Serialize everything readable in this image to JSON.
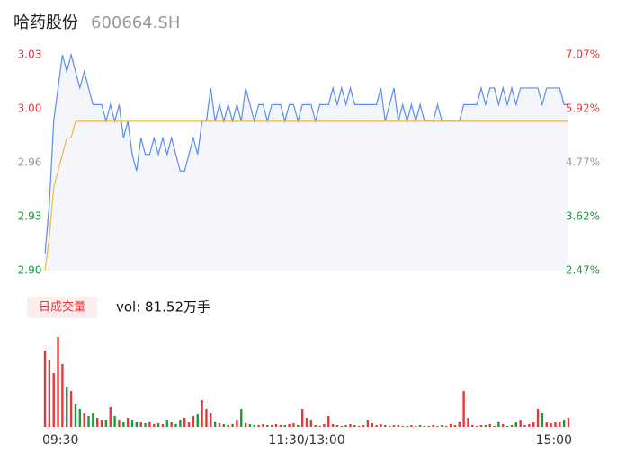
{
  "header": {
    "name": "哈药股份",
    "code": "600664.SH"
  },
  "chart_data": [
    {
      "type": "line",
      "xlim": [
        0,
        120
      ],
      "ylim": [
        2.9,
        3.03
      ],
      "yticks": [
        {
          "value": 3.03,
          "label": "3.03"
        },
        {
          "value": 2.9975,
          "label": "3.00"
        },
        {
          "value": 2.9649,
          "label": "2.96"
        },
        {
          "value": 2.9325,
          "label": "2.93"
        },
        {
          "value": 2.9,
          "label": "2.90"
        }
      ],
      "ytick_colors": [
        "#e4393c",
        "#e4393c",
        "#999999",
        "#1a9a3a",
        "#1a9a3a"
      ],
      "y2lim": [
        2.47,
        7.07
      ],
      "y2ticks": [
        {
          "value": 7.07,
          "label": "7.07%"
        },
        {
          "value": 5.92,
          "label": "5.92%"
        },
        {
          "value": 4.77,
          "label": "4.77%"
        },
        {
          "value": 3.62,
          "label": "3.62%"
        },
        {
          "value": 2.47,
          "label": "2.47%"
        }
      ],
      "y2tick_colors": [
        "#e4393c",
        "#e4393c",
        "#999999",
        "#1a9a3a",
        "#1a9a3a"
      ],
      "area_color": "#f4f6fc",
      "series": [
        {
          "color": "#5b8cf0",
          "area": true,
          "values": [
            2.91,
            2.94,
            2.99,
            3.01,
            3.03,
            3.02,
            3.03,
            3.02,
            3.01,
            3.02,
            3.01,
            3.0,
            3.0,
            3.0,
            2.99,
            3.0,
            2.99,
            3.0,
            2.98,
            2.99,
            2.97,
            2.96,
            2.98,
            2.97,
            2.97,
            2.98,
            2.97,
            2.98,
            2.97,
            2.98,
            2.97,
            2.96,
            2.96,
            2.97,
            2.98,
            2.97,
            2.99,
            2.99,
            3.01,
            2.99,
            3.0,
            2.99,
            3.0,
            2.99,
            3.0,
            2.99,
            3.01,
            3.0,
            2.99,
            3.0,
            3.0,
            2.99,
            3.0,
            3.0,
            3.0,
            2.99,
            3.0,
            3.0,
            2.99,
            3.0,
            3.0,
            3.0,
            2.99,
            3.0,
            3.0,
            3.0,
            3.01,
            3.0,
            3.01,
            3.0,
            3.01,
            3.0,
            3.0,
            3.0,
            3.0,
            3.0,
            3.0,
            3.01,
            2.99,
            3.0,
            3.01,
            2.99,
            3.0,
            2.99,
            3.0,
            2.99,
            3.0,
            2.99,
            2.99,
            2.99,
            3.0,
            2.99,
            2.99,
            2.99,
            2.99,
            2.99,
            3.0,
            3.0,
            3.0,
            3.0,
            3.01,
            3.0,
            3.01,
            3.01,
            3.0,
            3.01,
            3.0,
            3.01,
            3.0,
            3.01,
            3.01,
            3.01,
            3.01,
            3.01,
            3.0,
            3.01,
            3.01,
            3.01,
            3.01,
            3.0,
            3.0
          ]
        },
        {
          "color": "#f2b73f",
          "area": false,
          "values": [
            2.9,
            2.92,
            2.95,
            2.96,
            2.97,
            2.98,
            2.98,
            2.99,
            2.99,
            2.99,
            2.99,
            2.99,
            2.99,
            2.99,
            2.99,
            2.99,
            2.99,
            2.99,
            2.99,
            2.99,
            2.99,
            2.99,
            2.99,
            2.99,
            2.99,
            2.99,
            2.99,
            2.99,
            2.99,
            2.99,
            2.99,
            2.99,
            2.99,
            2.99,
            2.99,
            2.99,
            2.99,
            2.99,
            2.99,
            2.99,
            2.99,
            2.99,
            2.99,
            2.99,
            2.99,
            2.99,
            2.99,
            2.99,
            2.99,
            2.99,
            2.99,
            2.99,
            2.99,
            2.99,
            2.99,
            2.99,
            2.99,
            2.99,
            2.99,
            2.99,
            2.99,
            2.99,
            2.99,
            2.99,
            2.99,
            2.99,
            2.99,
            2.99,
            2.99,
            2.99,
            2.99,
            2.99,
            2.99,
            2.99,
            2.99,
            2.99,
            2.99,
            2.99,
            2.99,
            2.99,
            2.99,
            2.99,
            2.99,
            2.99,
            2.99,
            2.99,
            2.99,
            2.99,
            2.99,
            2.99,
            2.99,
            2.99,
            2.99,
            2.99,
            2.99,
            2.99,
            2.99,
            2.99,
            2.99,
            2.99,
            2.99,
            2.99,
            2.99,
            2.99,
            2.99,
            2.99,
            2.99,
            2.99,
            2.99,
            2.99,
            2.99,
            2.99,
            2.99,
            2.99,
            2.99,
            2.99,
            2.99,
            2.99,
            2.99,
            2.99,
            2.99
          ]
        }
      ]
    },
    {
      "type": "bar",
      "label": "日成交量",
      "total": "vol: 81.52万手",
      "up_color": "#e4393c",
      "down_color": "#1a9a3a",
      "xlim": [
        0,
        120
      ],
      "ylim": [
        0,
        60000
      ],
      "xticks": [
        {
          "value": 0,
          "label": "09:30"
        },
        {
          "value": 60,
          "label": "11:30/13:00"
        },
        {
          "value": 120,
          "label": "15:00"
        }
      ],
      "values": [
        51000,
        45000,
        36000,
        60000,
        42000,
        27000,
        24000,
        15000,
        12000,
        9000,
        7200,
        9000,
        6000,
        4800,
        4800,
        13200,
        7200,
        4800,
        3000,
        6000,
        4800,
        3600,
        3000,
        2400,
        3600,
        1800,
        2400,
        1800,
        4800,
        3000,
        1800,
        4800,
        6000,
        3000,
        7200,
        8400,
        18000,
        12000,
        9000,
        3600,
        2400,
        1800,
        1200,
        1800,
        4800,
        12000,
        2400,
        1800,
        1200,
        1200,
        1800,
        1200,
        1200,
        1800,
        1200,
        1200,
        1800,
        2400,
        1200,
        12000,
        6000,
        4800,
        1200,
        600,
        1800,
        7200,
        1800,
        1200,
        600,
        1200,
        1800,
        1200,
        600,
        1200,
        4800,
        2400,
        1200,
        1800,
        1200,
        600,
        1200,
        1200,
        600,
        600,
        1200,
        600,
        1200,
        600,
        600,
        1200,
        600,
        1200,
        600,
        1800,
        1200,
        3600,
        24000,
        6000,
        1200,
        600,
        1200,
        1200,
        1800,
        600,
        3600,
        1800,
        600,
        1200,
        3000,
        4800,
        1200,
        1800,
        3000,
        12000,
        9000,
        3000,
        2400,
        3600,
        3000,
        4800,
        6000
      ]
    }
  ]
}
